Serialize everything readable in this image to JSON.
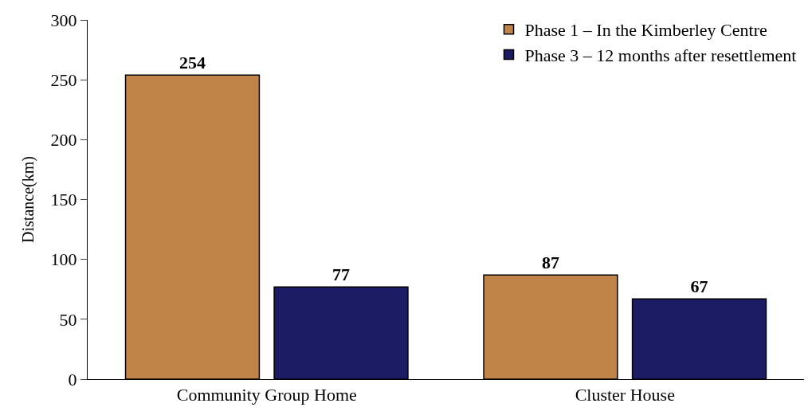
{
  "chart_data": {
    "type": "bar",
    "ylabel": "Distance(km)",
    "categories": [
      "Community Group Home",
      "Cluster House"
    ],
    "series": [
      {
        "name": "Phase 1 – In the Kimberley Centre",
        "color": "#c08448",
        "values": [
          254,
          87
        ]
      },
      {
        "name": "Phase 3 – 12 months after resettlement",
        "color": "#1c1c64",
        "values": [
          77,
          67
        ]
      }
    ],
    "ylim": [
      0,
      300
    ],
    "yticks": [
      0,
      50,
      100,
      150,
      200,
      250,
      300
    ],
    "legend": "top right",
    "data_labels": true
  }
}
